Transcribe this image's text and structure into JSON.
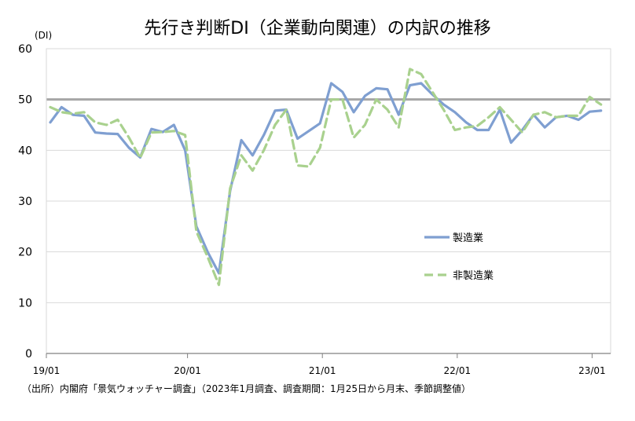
{
  "chart_data": {
    "type": "line",
    "title": "先行き判断DI（企業動向関連）の内訳の推移",
    "y_unit": "(DI)",
    "ylim": [
      0,
      60
    ],
    "yticks": [
      0,
      10,
      20,
      30,
      40,
      50,
      60
    ],
    "x_tick_labels": [
      "19/01",
      "20/01",
      "21/01",
      "22/01",
      "23/01"
    ],
    "x_tick_months": [
      0,
      12,
      24,
      36,
      48
    ],
    "x_start_label": "19/01",
    "grid": true,
    "reference_line": 50,
    "legend_position": "center-right",
    "series": [
      {
        "name": "製造業",
        "style": "solid",
        "color": "#7f9fd1",
        "values": [
          45.5,
          48.5,
          47.0,
          46.8,
          43.5,
          43.3,
          43.2,
          40.5,
          38.6,
          44.2,
          43.6,
          45.0,
          40.0,
          25.0,
          20.0,
          15.8,
          32.0,
          42.0,
          39.0,
          43.0,
          47.8,
          48.0,
          42.3,
          43.8,
          45.3,
          53.2,
          51.5,
          47.5,
          50.7,
          52.2,
          52.0,
          47.0,
          52.8,
          53.2,
          51.0,
          49.0,
          47.5,
          45.5,
          44.0,
          44.0,
          48.0,
          41.5,
          44.0,
          47.0,
          44.5,
          46.5,
          46.8,
          46.0,
          47.6,
          47.8
        ]
      },
      {
        "name": "非製造業",
        "style": "dashed",
        "color": "#a9d18e",
        "values": [
          48.5,
          47.5,
          47.2,
          47.5,
          45.5,
          45.0,
          46.0,
          42.5,
          38.5,
          43.5,
          43.6,
          43.8,
          43.0,
          24.0,
          19.0,
          13.5,
          32.5,
          39.0,
          36.0,
          40.0,
          45.0,
          48.0,
          37.0,
          36.8,
          40.5,
          50.0,
          50.0,
          42.5,
          45.0,
          50.0,
          48.0,
          44.5,
          56.0,
          55.0,
          51.5,
          48.0,
          44.0,
          44.5,
          44.8,
          46.5,
          48.5,
          46.0,
          43.5,
          47.0,
          47.5,
          46.5,
          46.8,
          46.8,
          50.5,
          49.0
        ]
      }
    ]
  },
  "source_note": "（出所）内閣府「景気ウォッチャー調査」（2023年1月調査、調査期間：1月25日から月末、季節調整値）"
}
